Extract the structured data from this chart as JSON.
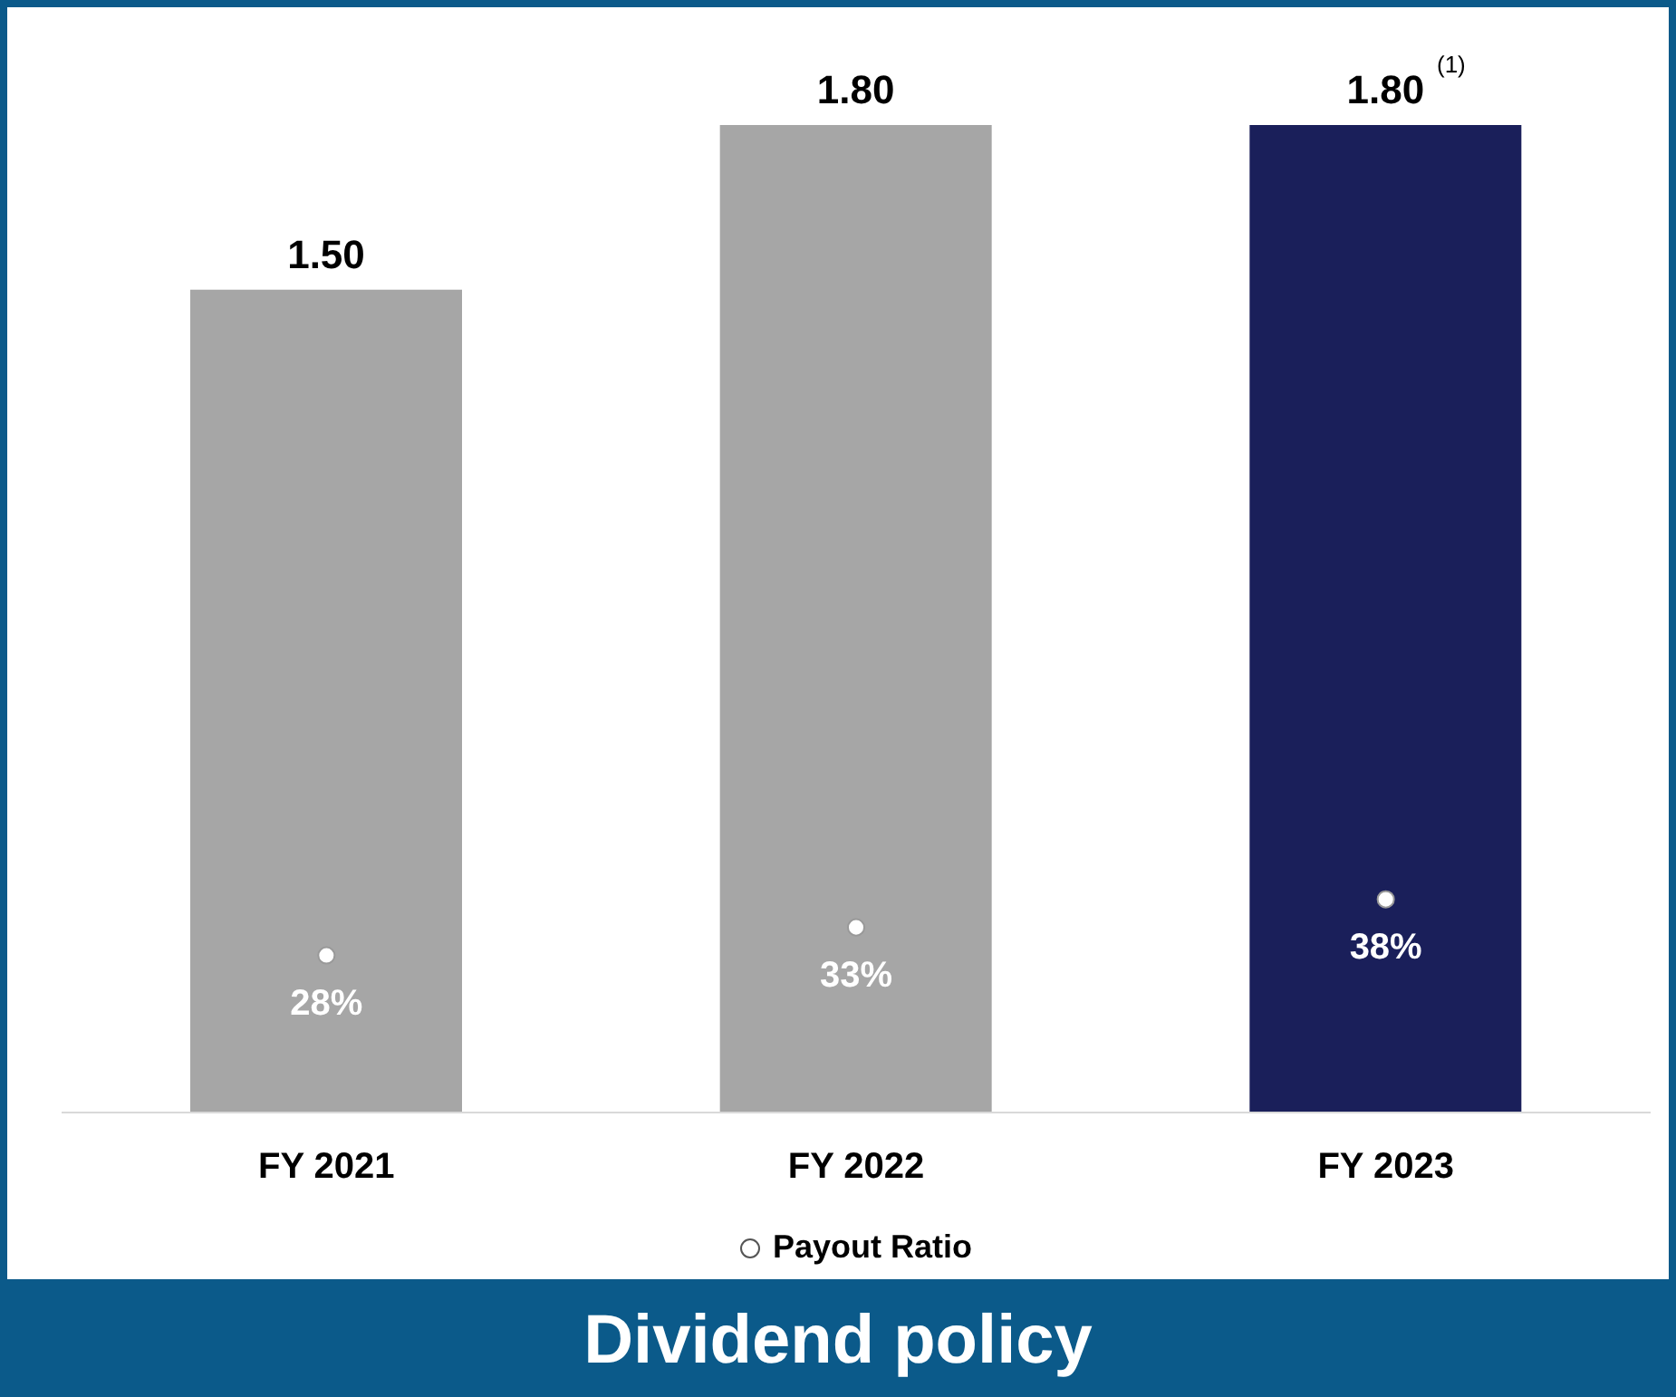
{
  "chart_data": {
    "type": "bar",
    "title": "Dividend policy",
    "categories": [
      "FY 2021",
      "FY 2022",
      "FY 2023"
    ],
    "series": [
      {
        "colors": [
          "#a6a6a6",
          "#a6a6a6",
          "#1a1f5a"
        ],
        "values": [
          1.5,
          1.8,
          1.8
        ],
        "value_labels": [
          "1.50",
          "1.80",
          "1.80"
        ]
      },
      {
        "type": "scatter",
        "name": "Payout Ratio",
        "axis": "y2",
        "color": "#ffffff",
        "marker": "circle",
        "values": [
          28,
          33,
          38
        ],
        "value_labels": [
          "28%",
          "33%",
          "38%"
        ]
      }
    ],
    "ylim": [
      0,
      1.8
    ],
    "y2lim": [
      0,
      176
    ],
    "grid": false,
    "legend": "bottom",
    "annotations": [
      "(1)"
    ]
  }
}
